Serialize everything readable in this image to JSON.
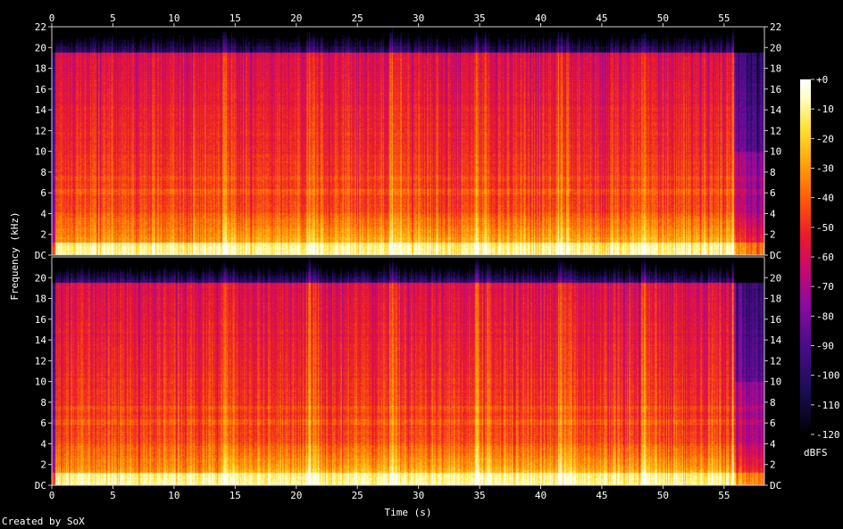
{
  "chart_data": {
    "type": "heatmap",
    "xlabel": "Time (s)",
    "ylabel": "Frequency (kHz)",
    "x_ticks": [
      0,
      5,
      10,
      15,
      20,
      25,
      30,
      35,
      40,
      45,
      50,
      55
    ],
    "xlim": [
      0,
      58.3
    ],
    "y_ticks": [
      {
        "value": 0,
        "label": "DC"
      },
      {
        "value": 2,
        "label": "2"
      },
      {
        "value": 4,
        "label": "4"
      },
      {
        "value": 6,
        "label": "6"
      },
      {
        "value": 8,
        "label": "8"
      },
      {
        "value": 10,
        "label": "10"
      },
      {
        "value": 12,
        "label": "12"
      },
      {
        "value": 14,
        "label": "14"
      },
      {
        "value": 16,
        "label": "16"
      },
      {
        "value": 18,
        "label": "18"
      },
      {
        "value": 20,
        "label": "20"
      },
      {
        "value": 22,
        "label": "22"
      }
    ],
    "ylim": [
      0,
      22
    ],
    "colorbar": {
      "unit": "dBFS",
      "ticks": [
        {
          "value": 0,
          "label": "+0"
        },
        {
          "value": -10,
          "label": "-10"
        },
        {
          "value": -20,
          "label": "-20"
        },
        {
          "value": -30,
          "label": "-30"
        },
        {
          "value": -40,
          "label": "-40"
        },
        {
          "value": -50,
          "label": "-50"
        },
        {
          "value": -60,
          "label": "-60"
        },
        {
          "value": -70,
          "label": "-70"
        },
        {
          "value": -80,
          "label": "-80"
        },
        {
          "value": -90,
          "label": "-90"
        },
        {
          "value": -100,
          "label": "-100"
        },
        {
          "value": -110,
          "label": "-110"
        },
        {
          "value": -120,
          "label": "-120"
        }
      ],
      "range": [
        -120,
        0
      ]
    },
    "channels": 2,
    "section_boundaries_s": [
      13.9,
      20.8,
      27.6,
      34.6,
      41.4,
      48.2,
      55.6
    ],
    "rolloff_khz": 19.5
  },
  "credit": "Created by SoX",
  "colors": {
    "background": "#000000",
    "text": "#ffffff",
    "palette": [
      "#000000",
      "#1c0c54",
      "#4a0c8a",
      "#8a0aa0",
      "#c80a6e",
      "#ec1a2a",
      "#fa5a0a",
      "#ffa00a",
      "#ffe030",
      "#ffffc8",
      "#ffffff"
    ]
  }
}
